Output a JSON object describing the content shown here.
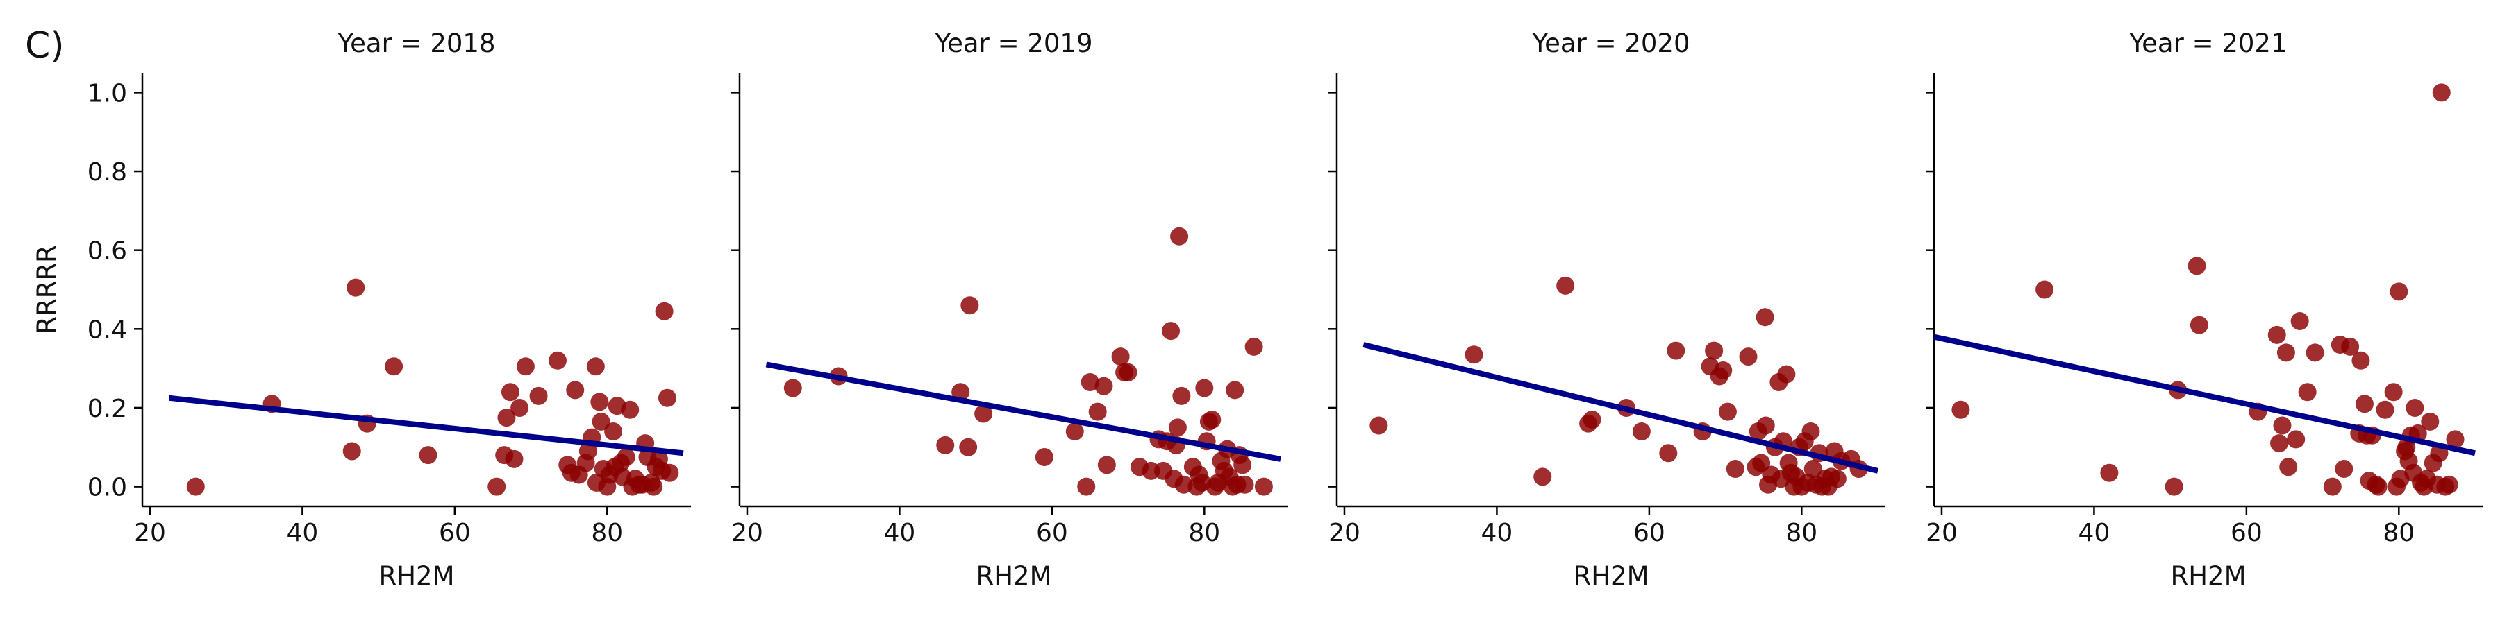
{
  "figure_label": "C)",
  "colors": {
    "points": "#8b0000",
    "line": "#00008b",
    "axes": "#000000"
  },
  "chart_data": [
    {
      "type": "scatter",
      "title": "Year = 2018",
      "xlabel": "RH2M",
      "ylabel": "RRRRR",
      "xlim": [
        19,
        91
      ],
      "ylim": [
        -0.05,
        1.05
      ],
      "xticks": [
        20,
        40,
        60,
        80
      ],
      "yticks": [
        0.0,
        0.2,
        0.4,
        0.6,
        0.8,
        1.0
      ],
      "regression": {
        "x": [
          22.5,
          90
        ],
        "y": [
          0.225,
          0.085
        ]
      },
      "points": [
        [
          26,
          0.0
        ],
        [
          36,
          0.21
        ],
        [
          46.5,
          0.09
        ],
        [
          47,
          0.505
        ],
        [
          48.5,
          0.16
        ],
        [
          52,
          0.305
        ],
        [
          56.5,
          0.08
        ],
        [
          65.5,
          0.0
        ],
        [
          66.5,
          0.08
        ],
        [
          66.8,
          0.175
        ],
        [
          67.3,
          0.24
        ],
        [
          67.8,
          0.07
        ],
        [
          68.5,
          0.2
        ],
        [
          69.3,
          0.305
        ],
        [
          71,
          0.23
        ],
        [
          73.5,
          0.32
        ],
        [
          74.8,
          0.055
        ],
        [
          75.3,
          0.035
        ],
        [
          75.8,
          0.245
        ],
        [
          76.3,
          0.03
        ],
        [
          77.2,
          0.06
        ],
        [
          77.5,
          0.09
        ],
        [
          78,
          0.125
        ],
        [
          78.5,
          0.305
        ],
        [
          78.6,
          0.01
        ],
        [
          79,
          0.215
        ],
        [
          79.2,
          0.165
        ],
        [
          79.5,
          0.045
        ],
        [
          80,
          0.0
        ],
        [
          80.3,
          0.03
        ],
        [
          80.8,
          0.14
        ],
        [
          81,
          0.05
        ],
        [
          81.3,
          0.205
        ],
        [
          81.8,
          0.06
        ],
        [
          82,
          0.025
        ],
        [
          82.5,
          0.075
        ],
        [
          83,
          0.195
        ],
        [
          83.3,
          0.0
        ],
        [
          83.7,
          0.02
        ],
        [
          84.2,
          0.005
        ],
        [
          84.6,
          0.005
        ],
        [
          85,
          0.11
        ],
        [
          85.3,
          0.075
        ],
        [
          85.8,
          0.01
        ],
        [
          86.1,
          0.0
        ],
        [
          86.4,
          0.05
        ],
        [
          86.8,
          0.07
        ],
        [
          87.2,
          0.04
        ],
        [
          87.5,
          0.445
        ],
        [
          87.9,
          0.225
        ],
        [
          88.2,
          0.035
        ]
      ]
    },
    {
      "type": "scatter",
      "title": "Year = 2019",
      "xlabel": "RH2M",
      "ylabel": "",
      "xlim": [
        19,
        91
      ],
      "ylim": [
        -0.05,
        1.05
      ],
      "xticks": [
        20,
        40,
        60,
        80
      ],
      "yticks": [
        0.0,
        0.2,
        0.4,
        0.6,
        0.8,
        1.0
      ],
      "regression": {
        "x": [
          22.5,
          90
        ],
        "y": [
          0.31,
          0.07
        ]
      },
      "points": [
        [
          26,
          0.25
        ],
        [
          32,
          0.28
        ],
        [
          46,
          0.105
        ],
        [
          48,
          0.24
        ],
        [
          49,
          0.1
        ],
        [
          49.2,
          0.46
        ],
        [
          51,
          0.185
        ],
        [
          59,
          0.075
        ],
        [
          63,
          0.14
        ],
        [
          64.5,
          0.0
        ],
        [
          65,
          0.265
        ],
        [
          66,
          0.19
        ],
        [
          66.8,
          0.255
        ],
        [
          67.2,
          0.055
        ],
        [
          69,
          0.33
        ],
        [
          69.5,
          0.29
        ],
        [
          70,
          0.29
        ],
        [
          71.5,
          0.05
        ],
        [
          73,
          0.04
        ],
        [
          74,
          0.12
        ],
        [
          74.6,
          0.04
        ],
        [
          75.1,
          0.115
        ],
        [
          75.6,
          0.395
        ],
        [
          76,
          0.02
        ],
        [
          76.3,
          0.105
        ],
        [
          76.5,
          0.15
        ],
        [
          76.7,
          0.635
        ],
        [
          77,
          0.23
        ],
        [
          77.3,
          0.005
        ],
        [
          78.5,
          0.05
        ],
        [
          79,
          0.0
        ],
        [
          79.3,
          0.03
        ],
        [
          79.7,
          0.01
        ],
        [
          80,
          0.25
        ],
        [
          80.3,
          0.115
        ],
        [
          80.6,
          0.165
        ],
        [
          81,
          0.17
        ],
        [
          81.4,
          0.0
        ],
        [
          81.8,
          0.01
        ],
        [
          82.2,
          0.065
        ],
        [
          82.6,
          0.04
        ],
        [
          83,
          0.095
        ],
        [
          83.3,
          0.025
        ],
        [
          83.7,
          0.0
        ],
        [
          84,
          0.245
        ],
        [
          84.3,
          0.005
        ],
        [
          84.6,
          0.08
        ],
        [
          85,
          0.055
        ],
        [
          85.3,
          0.005
        ],
        [
          86.5,
          0.355
        ],
        [
          87.8,
          0.0
        ]
      ]
    },
    {
      "type": "scatter",
      "title": "Year = 2020",
      "xlabel": "RH2M",
      "ylabel": "",
      "xlim": [
        19,
        91
      ],
      "ylim": [
        -0.05,
        1.05
      ],
      "xticks": [
        20,
        40,
        60,
        80
      ],
      "yticks": [
        0.0,
        0.2,
        0.4,
        0.6,
        0.8,
        1.0
      ],
      "regression": {
        "x": [
          22.5,
          90
        ],
        "y": [
          0.36,
          0.04
        ]
      },
      "points": [
        [
          24.5,
          0.155
        ],
        [
          37,
          0.335
        ],
        [
          46,
          0.025
        ],
        [
          49,
          0.51
        ],
        [
          52,
          0.16
        ],
        [
          52.5,
          0.17
        ],
        [
          57,
          0.2
        ],
        [
          59,
          0.14
        ],
        [
          62.5,
          0.085
        ],
        [
          63.5,
          0.345
        ],
        [
          67,
          0.14
        ],
        [
          68,
          0.305
        ],
        [
          68.5,
          0.345
        ],
        [
          69.2,
          0.28
        ],
        [
          69.7,
          0.295
        ],
        [
          70.3,
          0.19
        ],
        [
          71.3,
          0.045
        ],
        [
          73,
          0.33
        ],
        [
          74,
          0.05
        ],
        [
          74.3,
          0.14
        ],
        [
          74.7,
          0.06
        ],
        [
          75.2,
          0.43
        ],
        [
          75.3,
          0.155
        ],
        [
          75.6,
          0.005
        ],
        [
          76,
          0.03
        ],
        [
          76.5,
          0.1
        ],
        [
          77,
          0.265
        ],
        [
          77.3,
          0.02
        ],
        [
          77.6,
          0.115
        ],
        [
          78,
          0.285
        ],
        [
          78.3,
          0.06
        ],
        [
          78.6,
          0.035
        ],
        [
          79,
          0.0
        ],
        [
          79.3,
          0.025
        ],
        [
          79.7,
          0.1
        ],
        [
          80,
          0.0
        ],
        [
          80.4,
          0.115
        ],
        [
          80.8,
          0.01
        ],
        [
          81.2,
          0.14
        ],
        [
          81.5,
          0.045
        ],
        [
          81.9,
          0.005
        ],
        [
          82.3,
          0.085
        ],
        [
          82.7,
          0.0
        ],
        [
          83.1,
          0.02
        ],
        [
          83.5,
          0.0
        ],
        [
          83.9,
          0.025
        ],
        [
          84.3,
          0.09
        ],
        [
          84.7,
          0.02
        ],
        [
          85.2,
          0.065
        ],
        [
          86.5,
          0.07
        ],
        [
          87.5,
          0.045
        ]
      ]
    },
    {
      "type": "scatter",
      "title": "Year = 2021",
      "xlabel": "RH2M",
      "ylabel": "",
      "xlim": [
        19,
        91
      ],
      "ylim": [
        -0.05,
        1.05
      ],
      "xticks": [
        20,
        40,
        60,
        80
      ],
      "yticks": [
        0.0,
        0.2,
        0.4,
        0.6,
        0.8,
        1.0
      ],
      "regression": {
        "x": [
          19,
          90
        ],
        "y": [
          0.38,
          0.085
        ]
      },
      "points": [
        [
          22.5,
          0.195
        ],
        [
          33.5,
          0.5
        ],
        [
          42,
          0.035
        ],
        [
          50.5,
          0.0
        ],
        [
          51,
          0.245
        ],
        [
          53.5,
          0.56
        ],
        [
          53.8,
          0.41
        ],
        [
          61.5,
          0.19
        ],
        [
          64,
          0.385
        ],
        [
          64.3,
          0.11
        ],
        [
          64.7,
          0.155
        ],
        [
          65.2,
          0.34
        ],
        [
          65.5,
          0.05
        ],
        [
          66.5,
          0.12
        ],
        [
          67,
          0.42
        ],
        [
          68,
          0.24
        ],
        [
          69,
          0.34
        ],
        [
          71.3,
          0.0
        ],
        [
          72.3,
          0.36
        ],
        [
          72.8,
          0.045
        ],
        [
          73.6,
          0.355
        ],
        [
          74.8,
          0.135
        ],
        [
          75,
          0.32
        ],
        [
          75.5,
          0.21
        ],
        [
          75.8,
          0.13
        ],
        [
          76.1,
          0.015
        ],
        [
          76.5,
          0.13
        ],
        [
          77,
          0.005
        ],
        [
          77.3,
          0.0
        ],
        [
          78.2,
          0.195
        ],
        [
          79.3,
          0.24
        ],
        [
          79.7,
          0.0
        ],
        [
          80,
          0.495
        ],
        [
          80.2,
          0.02
        ],
        [
          80.8,
          0.09
        ],
        [
          81,
          0.1
        ],
        [
          81.3,
          0.065
        ],
        [
          81.6,
          0.13
        ],
        [
          81.9,
          0.035
        ],
        [
          82.1,
          0.2
        ],
        [
          82.5,
          0.135
        ],
        [
          82.9,
          0.01
        ],
        [
          83.3,
          0.0
        ],
        [
          83.7,
          0.02
        ],
        [
          84.1,
          0.165
        ],
        [
          84.5,
          0.06
        ],
        [
          85,
          0.005
        ],
        [
          85.3,
          0.085
        ],
        [
          85.6,
          1.0
        ],
        [
          86.1,
          0.0
        ],
        [
          86.6,
          0.005
        ],
        [
          87.4,
          0.12
        ]
      ]
    }
  ]
}
